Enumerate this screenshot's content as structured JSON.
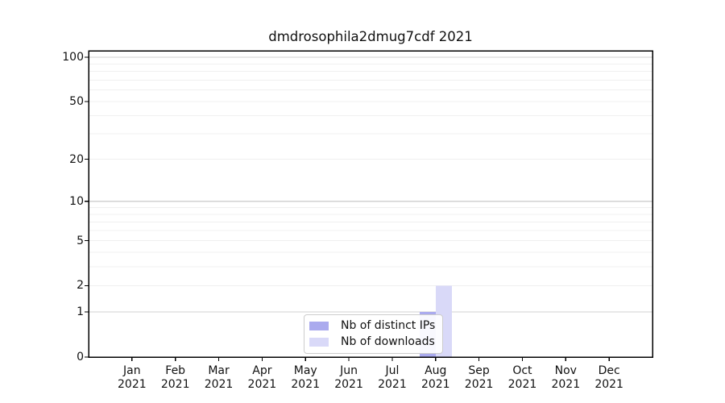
{
  "chart_data": {
    "type": "bar",
    "title": "dmdrosophila2dmug7cdf 2021",
    "x_axis": {
      "months": [
        "Jan",
        "Feb",
        "Mar",
        "Apr",
        "May",
        "Jun",
        "Jul",
        "Aug",
        "Sep",
        "Oct",
        "Nov",
        "Dec"
      ],
      "year": "2021"
    },
    "y_axis": {
      "tick_values": [
        0,
        1,
        2,
        5,
        10,
        20,
        50,
        100
      ],
      "major_values": [
        1,
        10,
        100
      ],
      "minor_values": [
        2,
        3,
        4,
        5,
        6,
        7,
        8,
        9,
        20,
        30,
        40,
        50,
        60,
        70,
        80,
        90
      ],
      "scale": "log1p",
      "ylim": [
        0,
        110
      ]
    },
    "series": [
      {
        "name": "Nb of distinct IPs",
        "color": "#aaaaee",
        "values": [
          0,
          0,
          0,
          0,
          0,
          0,
          0,
          1,
          0,
          0,
          0,
          0
        ]
      },
      {
        "name": "Nb of downloads",
        "color": "#d9d9f8",
        "values": [
          0,
          0,
          0,
          0,
          0,
          0,
          0,
          2,
          0,
          0,
          0,
          0
        ]
      }
    ],
    "legend": {
      "entries": [
        "Nb of distinct IPs",
        "Nb of downloads"
      ],
      "position": "lower center inside plot"
    },
    "grid": {
      "horizontal": true,
      "vertical": false,
      "minor": true
    },
    "colors": {
      "major_grid": "#d2d2d2",
      "minor_grid": "#f0f0f0",
      "spine": "#000000",
      "text": "#111111"
    }
  }
}
